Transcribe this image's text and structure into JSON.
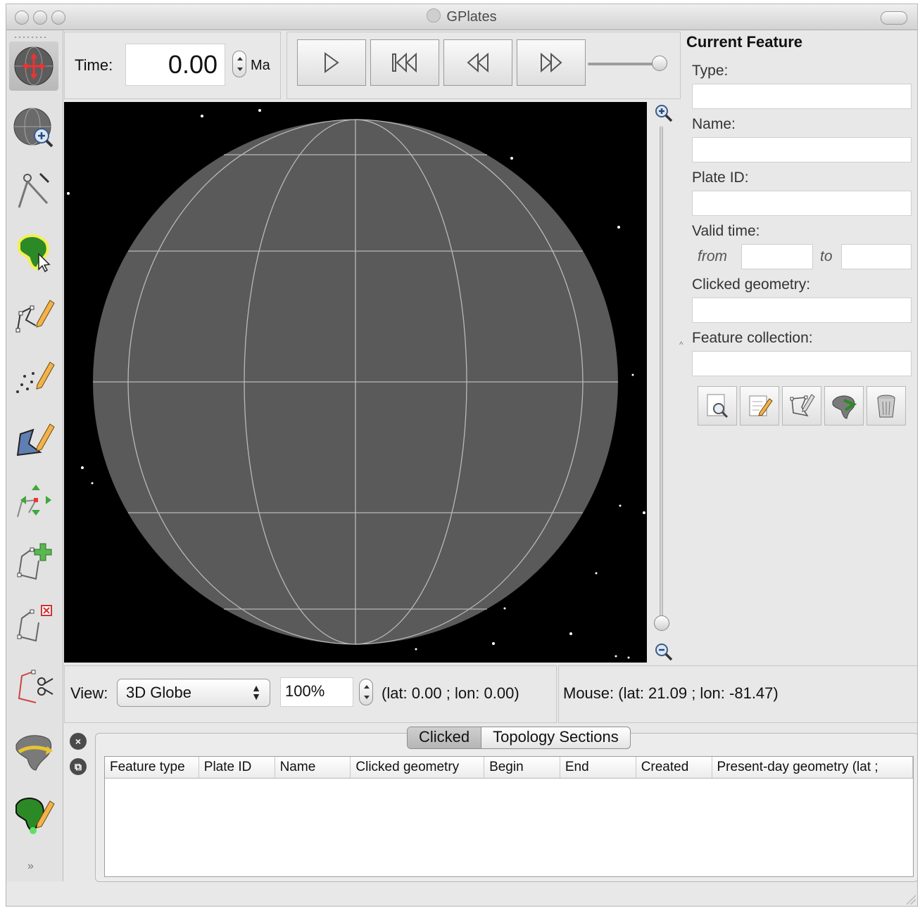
{
  "window": {
    "title": "GPlates"
  },
  "toolbox": {
    "tools": [
      {
        "name": "drag-globe-tool",
        "icon": "drag-globe-icon",
        "active": true
      },
      {
        "name": "zoom-globe-tool",
        "icon": "zoom-globe-icon"
      },
      {
        "name": "measure-distance-tool",
        "icon": "compass-icon"
      },
      {
        "name": "choose-feature-tool",
        "icon": "choose-feature-icon"
      },
      {
        "name": "digitise-polyline-tool",
        "icon": "digitise-polyline-icon"
      },
      {
        "name": "digitise-multipoint-tool",
        "icon": "digitise-multipoint-icon"
      },
      {
        "name": "digitise-polygon-tool",
        "icon": "digitise-polygon-icon"
      },
      {
        "name": "move-vertex-tool",
        "icon": "move-vertex-icon"
      },
      {
        "name": "insert-vertex-tool",
        "icon": "insert-vertex-icon"
      },
      {
        "name": "delete-vertex-tool",
        "icon": "delete-vertex-icon"
      },
      {
        "name": "split-feature-tool",
        "icon": "scissors-icon"
      },
      {
        "name": "manipulate-pole-tool",
        "icon": "manipulate-pole-icon"
      },
      {
        "name": "build-topology-tool",
        "icon": "build-topology-icon"
      }
    ]
  },
  "time": {
    "label": "Time:",
    "value": "0.00",
    "unit": "Ma"
  },
  "animation": {
    "buttons": [
      "play-icon",
      "reset-icon",
      "step-back-icon",
      "step-forward-icon"
    ]
  },
  "current_feature": {
    "title": "Current Feature",
    "type_label": "Type:",
    "name_label": "Name:",
    "plate_id_label": "Plate ID:",
    "valid_time_label": "Valid time:",
    "from_label": "from",
    "to_label": "to",
    "clicked_geometry_label": "Clicked geometry:",
    "feature_collection_label": "Feature collection:",
    "type_value": "",
    "name_value": "",
    "plate_id_value": "",
    "from_value": "",
    "to_value": "",
    "clicked_geometry_value": "",
    "feature_collection_value": "",
    "buttons": [
      "query-feature-icon",
      "edit-feature-icon",
      "edit-geometry-icon",
      "change-plate-icon",
      "delete-feature-icon"
    ]
  },
  "view": {
    "label": "View:",
    "projection": "3D Globe",
    "zoom": "100%",
    "camera_coords": "(lat: 0.00 ; lon: 0.00)"
  },
  "mouse": {
    "text": "Mouse: (lat: 21.09 ; lon: -81.47)"
  },
  "bottom": {
    "tabs": [
      {
        "label": "Clicked",
        "selected": true
      },
      {
        "label": "Topology Sections",
        "selected": false
      }
    ],
    "columns": [
      "Feature type",
      "Plate ID",
      "Name",
      "Clicked geometry",
      "Begin",
      "End",
      "Created",
      "Present-day geometry (lat ;"
    ]
  },
  "colors": {
    "globe": "#5a5a5a",
    "graticule": "#b9b9b9",
    "space": "#000000",
    "africa_green": "#2c8a26",
    "highlight_yellow": "#f2ef55"
  }
}
